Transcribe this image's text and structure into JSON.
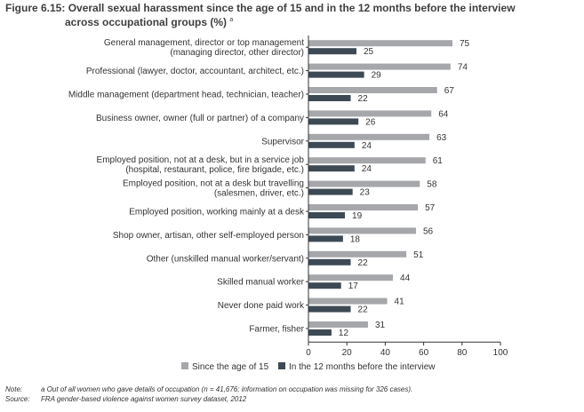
{
  "title_line1": "Figure 6.15: Overall sexual harassment since the age of 15 and in the 12 months before the interview",
  "title_line2": "across occupational groups (%)",
  "title_footnote_mark": "a",
  "note_label": "Note:",
  "note_text": "a  Out of all women who gave details of occupation (n = 41,676; information on occupation was missing for 326 cases).",
  "source_label": "Source:",
  "source_text": "FRA gender-based violence against women survey dataset, 2012",
  "colors": {
    "since15": "#a5a7aa",
    "last12": "#3d4a55",
    "axis": "#333333"
  },
  "chart_data": {
    "type": "bar",
    "orientation": "horizontal",
    "categories": [
      [
        "General management, director or top management",
        "(managing director, other director)"
      ],
      [
        "Professional (lawyer, doctor, accountant, architect, etc.)"
      ],
      [
        "Middle management (department head, technician, teacher)"
      ],
      [
        "Business owner, owner (full or partner) of a company"
      ],
      [
        "Supervisor"
      ],
      [
        "Employed position, not at a desk, but in a service job",
        "(hospital, restaurant, police, fire brigade, etc.)"
      ],
      [
        "Employed position, not at a desk but travelling",
        "(salesmen, driver, etc.)"
      ],
      [
        "Employed position, working mainly at a desk"
      ],
      [
        "Shop owner, artisan, other self-employed person"
      ],
      [
        "Other (unskilled manual worker/servant)"
      ],
      [
        "Skilled manual worker"
      ],
      [
        "Never done paid work"
      ],
      [
        "Farmer, fisher"
      ]
    ],
    "series": [
      {
        "name": "Since the age of 15",
        "values": [
          75,
          74,
          67,
          64,
          63,
          61,
          58,
          57,
          56,
          51,
          44,
          41,
          31
        ]
      },
      {
        "name": "In the 12 months before the interview",
        "values": [
          25,
          29,
          22,
          26,
          24,
          24,
          23,
          19,
          18,
          22,
          17,
          22,
          12
        ]
      }
    ],
    "xlim": [
      0,
      100
    ],
    "xticks": [
      0,
      20,
      40,
      60,
      80,
      100
    ],
    "legend_position": "bottom",
    "grid": false
  }
}
